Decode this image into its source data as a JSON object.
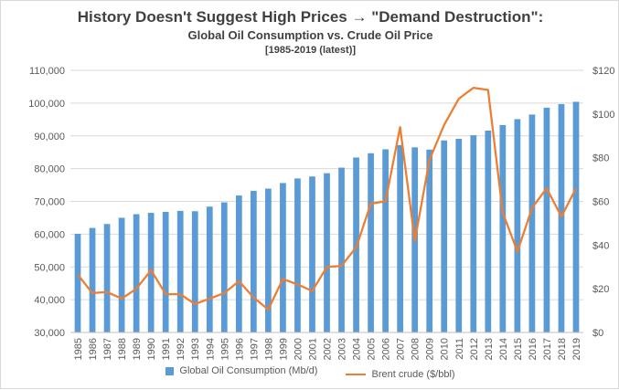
{
  "chart_data": {
    "type": "bar+line",
    "title": "History Doesn't Suggest High Prices → \"Demand Destruction\":",
    "subtitle": "Global Oil Consumption vs. Crude Oil Price",
    "subtitle2": "[1985-2019 (latest)]",
    "categories": [
      "1985",
      "1986",
      "1987",
      "1988",
      "1989",
      "1990",
      "1991",
      "1992",
      "1993",
      "1994",
      "1995",
      "1996",
      "1997",
      "1998",
      "1999",
      "2000",
      "2001",
      "2002",
      "2003",
      "2004",
      "2005",
      "2006",
      "2007",
      "2008",
      "2009",
      "2010",
      "2011",
      "2012",
      "2013",
      "2014",
      "2015",
      "2016",
      "2017",
      "2018",
      "2019"
    ],
    "series": [
      {
        "name": "Global Oil Consumption (Mb/d)",
        "type": "bar",
        "axis": "left",
        "color": "#5b9bd5",
        "values": [
          60100,
          61900,
          63100,
          65000,
          66100,
          66500,
          66800,
          67100,
          67000,
          68400,
          69700,
          71800,
          73200,
          73900,
          75600,
          77000,
          77600,
          78600,
          80300,
          83400,
          84700,
          85900,
          87200,
          86500,
          85800,
          88600,
          89100,
          90200,
          91600,
          93300,
          95100,
          96500,
          98600,
          99700,
          100400
        ]
      },
      {
        "name": "Brent crude ($/bbl)",
        "type": "line",
        "axis": "right",
        "color": "#ed7d31",
        "values": [
          26.5,
          18.0,
          18.5,
          15.5,
          20.0,
          28.5,
          17.5,
          17.5,
          13.0,
          15.5,
          18.0,
          23.5,
          16.0,
          10.5,
          24.5,
          22.0,
          19.0,
          30.0,
          30.5,
          39.0,
          59.0,
          60.0,
          94.0,
          42.0,
          79.0,
          95.0,
          107.0,
          112.0,
          111.0,
          55.0,
          37.0,
          57.0,
          66.0,
          53.0,
          66.0
        ]
      }
    ],
    "y_left": {
      "min": 30000,
      "max": 110000,
      "step": 10000,
      "ticks": [
        "30,000",
        "40,000",
        "50,000",
        "60,000",
        "70,000",
        "80,000",
        "90,000",
        "100,000",
        "110,000"
      ]
    },
    "y_right": {
      "min": 0,
      "max": 120,
      "step": 20,
      "ticks": [
        "$0",
        "$20",
        "$40",
        "$60",
        "$80",
        "$100",
        "$120"
      ]
    },
    "grid": true,
    "legend_position": "bottom"
  }
}
